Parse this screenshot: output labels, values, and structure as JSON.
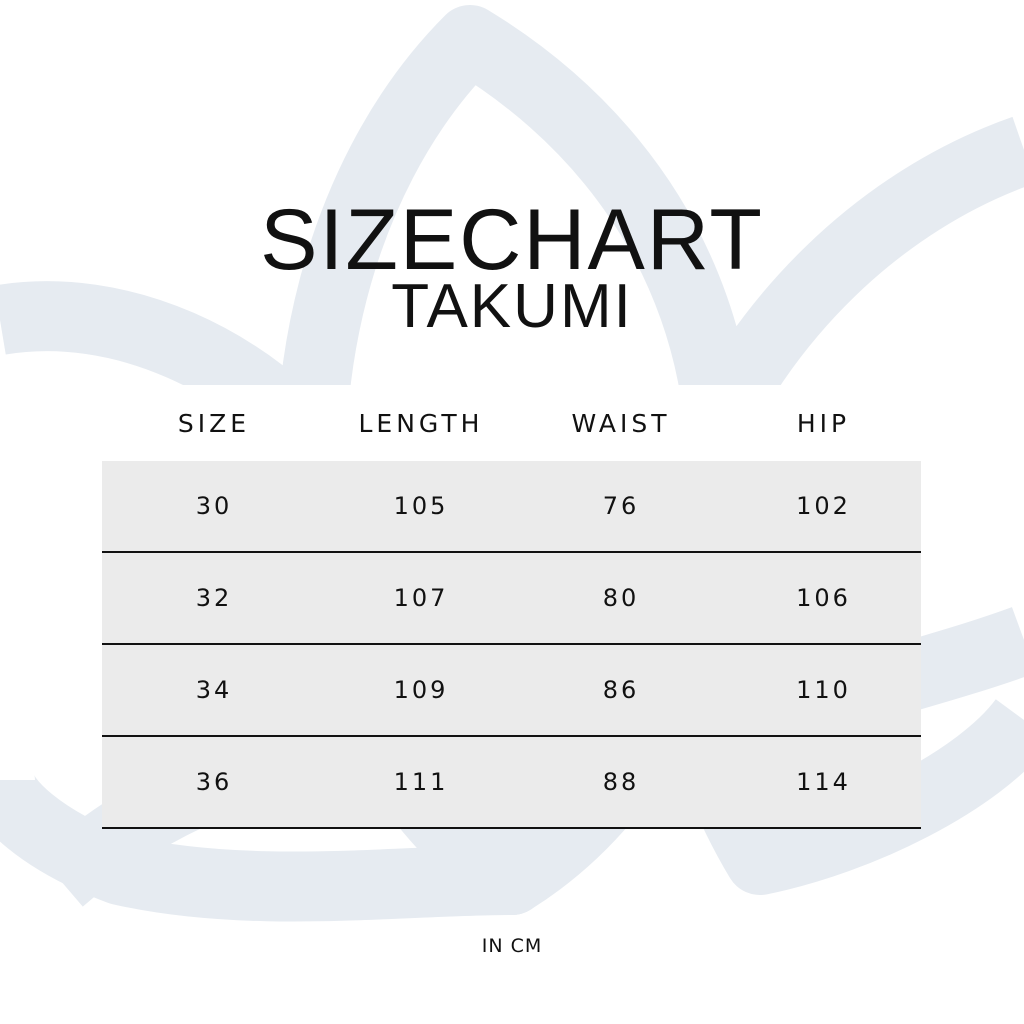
{
  "title": "SIZECHART",
  "subtitle": "TAKUMI",
  "colors": {
    "watermark": "#e6ebf1",
    "row_background": "#ebebeb",
    "divider": "#111111"
  },
  "table": {
    "headers": [
      "SIZE",
      "LENGTH",
      "WAIST",
      "HIP"
    ],
    "rows": [
      [
        "30",
        "105",
        "76",
        "102"
      ],
      [
        "32",
        "107",
        "80",
        "106"
      ],
      [
        "34",
        "109",
        "86",
        "110"
      ],
      [
        "36",
        "111",
        "88",
        "114"
      ]
    ]
  },
  "unit_note": "IN CM"
}
